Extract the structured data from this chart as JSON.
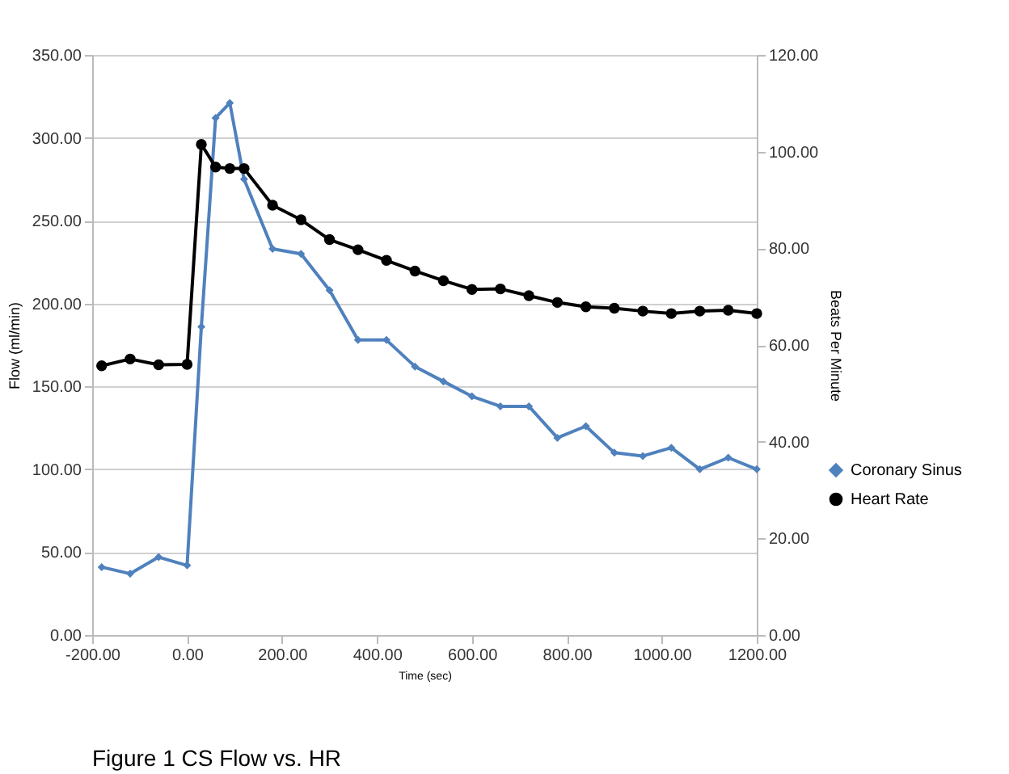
{
  "chart_data": {
    "type": "line",
    "title": "Figure 1 CS Flow vs. HR",
    "xlabel": "Time (sec)",
    "ylabel": "Flow (ml/min)",
    "y2label": "Beats Per Minute",
    "x": [
      -180,
      -120,
      -60,
      0,
      30,
      60,
      90,
      120,
      180,
      240,
      300,
      360,
      420,
      480,
      540,
      600,
      660,
      720,
      780,
      840,
      900,
      960,
      1020,
      1080,
      1140,
      1200
    ],
    "series": [
      {
        "name": "Coronary Sinus",
        "color": "#4f81bd",
        "marker": "diamond",
        "values": [
          41,
          37,
          47,
          42,
          186,
          312,
          321,
          275,
          233,
          230,
          208,
          178,
          178,
          162,
          153,
          144,
          138,
          138,
          119,
          126,
          110,
          108,
          113,
          100,
          107,
          100
        ]
      },
      {
        "name": "Heart Rate",
        "color": "#000000",
        "marker": "circle",
        "axis": "y2",
        "values": [
          55.7,
          57.1,
          55.9,
          56.0,
          101.5,
          96.8,
          96.5,
          96.5,
          88.9,
          85.9,
          81.8,
          79.7,
          77.5,
          75.3,
          73.3,
          71.5,
          71.6,
          70.2,
          68.8,
          67.9,
          67.6,
          67.0,
          66.5,
          67.0,
          67.2,
          66.5
        ]
      }
    ],
    "xlim": [
      -200,
      1200
    ],
    "xticks": [
      {
        "value": -200,
        "label": "-200.00"
      },
      {
        "value": 0,
        "label": "0.00"
      },
      {
        "value": 200,
        "label": "200.00"
      },
      {
        "value": 400,
        "label": "400.00"
      },
      {
        "value": 600,
        "label": "600.00"
      },
      {
        "value": 800,
        "label": "800.00"
      },
      {
        "value": 1000,
        "label": "1000.00"
      },
      {
        "value": 1200,
        "label": "1200.00"
      }
    ],
    "ylim": [
      0,
      350
    ],
    "yticks": [
      {
        "value": 0,
        "label": "0.00"
      },
      {
        "value": 50,
        "label": "50.00"
      },
      {
        "value": 100,
        "label": "100.00"
      },
      {
        "value": 150,
        "label": "150.00"
      },
      {
        "value": 200,
        "label": "200.00"
      },
      {
        "value": 250,
        "label": "250.00"
      },
      {
        "value": 300,
        "label": "300.00"
      },
      {
        "value": 350,
        "label": "350.00"
      }
    ],
    "y2lim": [
      0,
      120
    ],
    "y2ticks": [
      {
        "value": 0,
        "label": "0.00"
      },
      {
        "value": 20,
        "label": "20.00"
      },
      {
        "value": 40,
        "label": "40.00"
      },
      {
        "value": 60,
        "label": "60.00"
      },
      {
        "value": 80,
        "label": "80.00"
      },
      {
        "value": 100,
        "label": "100.00"
      },
      {
        "value": 120,
        "label": "120.00"
      }
    ],
    "grid": "y",
    "legend": "right"
  }
}
